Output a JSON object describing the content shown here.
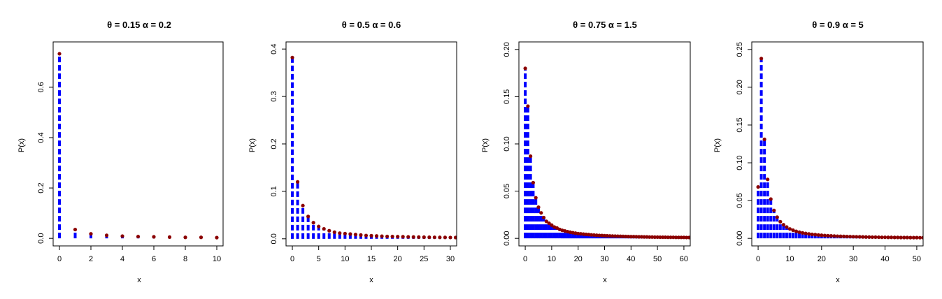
{
  "figure": {
    "marker_color": "#8b0000",
    "stem_color": "#0000ff"
  },
  "chart_data": [
    {
      "type": "scatter",
      "title": "θ = 0.15  α = 0.2",
      "xlabel": "x",
      "ylabel": "P(x)",
      "xlim": [
        -0.4,
        10.4
      ],
      "ylim": [
        -0.03,
        0.78
      ],
      "xticks": [
        0,
        2,
        4,
        6,
        8,
        10
      ],
      "yticks": [
        0.0,
        0.2,
        0.4,
        0.6
      ],
      "ytick_labels": [
        "0.0",
        "0.2",
        "0.4",
        "0.6"
      ],
      "x": [
        0,
        1,
        2,
        3,
        4,
        5,
        6,
        7,
        8,
        9,
        10
      ],
      "values": [
        0.733,
        0.035,
        0.018,
        0.012,
        0.009,
        0.007,
        0.006,
        0.005,
        0.004,
        0.004,
        0.003
      ]
    },
    {
      "type": "scatter",
      "title": "θ = 0.5  α = 0.6",
      "xlabel": "x",
      "ylabel": "P(x)",
      "xlim": [
        -1.2,
        31.2
      ],
      "ylim": [
        -0.015,
        0.415
      ],
      "xticks": [
        0,
        5,
        10,
        15,
        20,
        25,
        30
      ],
      "yticks": [
        0.0,
        0.1,
        0.2,
        0.3,
        0.4
      ],
      "ytick_labels": [
        "0.0",
        "0.1",
        "0.2",
        "0.3",
        "0.4"
      ],
      "x": [
        0,
        1,
        2,
        3,
        4,
        5,
        6,
        7,
        8,
        9,
        10,
        11,
        12,
        13,
        14,
        15,
        16,
        17,
        18,
        19,
        20,
        21,
        22,
        23,
        24,
        25,
        26,
        27,
        28,
        29,
        30,
        31
      ],
      "values": [
        0.382,
        0.12,
        0.07,
        0.047,
        0.034,
        0.026,
        0.021,
        0.017,
        0.014,
        0.012,
        0.011,
        0.01,
        0.009,
        0.008,
        0.007,
        0.0065,
        0.006,
        0.0055,
        0.005,
        0.0048,
        0.0045,
        0.0043,
        0.004,
        0.0038,
        0.0036,
        0.0034,
        0.0032,
        0.0031,
        0.003,
        0.0029,
        0.0028,
        0.0027
      ]
    },
    {
      "type": "scatter",
      "title": "θ = 0.75  α = 1.5",
      "xlabel": "x",
      "ylabel": "P(x)",
      "xlim": [
        -2.4,
        62.4
      ],
      "ylim": [
        -0.008,
        0.208
      ],
      "xticks": [
        0,
        10,
        20,
        30,
        40,
        50,
        60
      ],
      "yticks": [
        0.0,
        0.05,
        0.1,
        0.15,
        0.2
      ],
      "ytick_labels": [
        "0.00",
        "0.05",
        "0.10",
        "0.15",
        "0.20"
      ],
      "x": [
        0,
        1,
        2,
        3,
        4,
        5,
        6,
        7,
        8,
        9,
        10,
        11,
        12,
        13,
        14,
        15,
        16,
        17,
        18,
        19,
        20,
        21,
        22,
        23,
        24,
        25,
        26,
        27,
        28,
        29,
        30,
        31,
        32,
        33,
        34,
        35,
        36,
        37,
        38,
        39,
        40,
        41,
        42,
        43,
        44,
        45,
        46,
        47,
        48,
        49,
        50,
        51,
        52,
        53,
        54,
        55,
        56,
        57,
        58,
        59,
        60,
        61,
        62
      ],
      "values": [
        0.18,
        0.14,
        0.087,
        0.059,
        0.043,
        0.033,
        0.027,
        0.022,
        0.018,
        0.016,
        0.014,
        0.012,
        0.011,
        0.0095,
        0.0085,
        0.0078,
        0.0071,
        0.0065,
        0.006,
        0.0055,
        0.0051,
        0.0048,
        0.0045,
        0.0042,
        0.004,
        0.0037,
        0.0035,
        0.0033,
        0.0031,
        0.003,
        0.0028,
        0.0027,
        0.0026,
        0.0025,
        0.0024,
        0.0023,
        0.0022,
        0.0021,
        0.002,
        0.0019,
        0.0018,
        0.0018,
        0.0017,
        0.0016,
        0.0016,
        0.0015,
        0.0015,
        0.0014,
        0.0014,
        0.0013,
        0.0013,
        0.0012,
        0.0012,
        0.0012,
        0.0011,
        0.0011,
        0.0011,
        0.001,
        0.001,
        0.001,
        0.001,
        0.0009,
        0.0009
      ]
    },
    {
      "type": "scatter",
      "title": "θ = 0.9  α = 5",
      "xlabel": "x",
      "ylabel": "P(x)",
      "xlim": [
        -2.0,
        52.0
      ],
      "ylim": [
        -0.01,
        0.26
      ],
      "xticks": [
        0,
        10,
        20,
        30,
        40,
        50
      ],
      "yticks": [
        0.0,
        0.05,
        0.1,
        0.15,
        0.2,
        0.25
      ],
      "ytick_labels": [
        "0.00",
        "0.05",
        "0.10",
        "0.15",
        "0.20",
        "0.25"
      ],
      "x": [
        0,
        1,
        2,
        3,
        4,
        5,
        6,
        7,
        8,
        9,
        10,
        11,
        12,
        13,
        14,
        15,
        16,
        17,
        18,
        19,
        20,
        21,
        22,
        23,
        24,
        25,
        26,
        27,
        28,
        29,
        30,
        31,
        32,
        33,
        34,
        35,
        36,
        37,
        38,
        39,
        40,
        41,
        42,
        43,
        44,
        45,
        46,
        47,
        48,
        49,
        50,
        51,
        52
      ],
      "values": [
        0.068,
        0.238,
        0.131,
        0.078,
        0.052,
        0.037,
        0.028,
        0.022,
        0.018,
        0.015,
        0.0125,
        0.0108,
        0.0093,
        0.0082,
        0.0072,
        0.0065,
        0.0059,
        0.0053,
        0.0049,
        0.0045,
        0.0041,
        0.0038,
        0.0035,
        0.0033,
        0.0031,
        0.0029,
        0.0027,
        0.0026,
        0.0024,
        0.0023,
        0.0022,
        0.0021,
        0.002,
        0.0019,
        0.0018,
        0.0017,
        0.0016,
        0.0016,
        0.0015,
        0.0014,
        0.0014,
        0.0013,
        0.0013,
        0.0012,
        0.0012,
        0.0011,
        0.0011,
        0.0011,
        0.001,
        0.001,
        0.001,
        0.0009,
        0.0009
      ]
    }
  ]
}
